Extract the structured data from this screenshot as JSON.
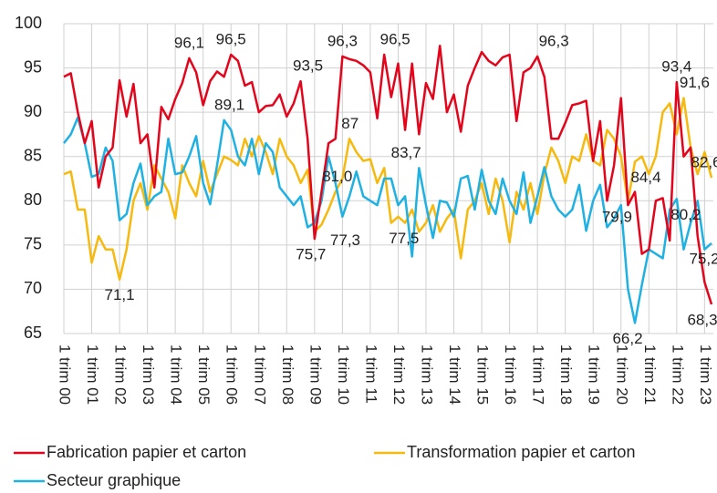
{
  "chart_data": {
    "type": "line",
    "categories": [
      "1 trim 00",
      null,
      null,
      null,
      "1 trim 01",
      null,
      null,
      null,
      "1 trim 02",
      null,
      null,
      null,
      "1 trim 03",
      null,
      null,
      null,
      "1 trim 04",
      null,
      null,
      null,
      "1 trim 05",
      null,
      null,
      null,
      "1 trim 06",
      null,
      null,
      null,
      "1 trim 07",
      null,
      null,
      null,
      "1 trim 08",
      null,
      null,
      null,
      "1 trim 09",
      null,
      null,
      null,
      "1 trim 10",
      null,
      null,
      null,
      "1 trim 11",
      null,
      null,
      null,
      "1 trim 12",
      null,
      null,
      null,
      "1 trim 13",
      null,
      null,
      null,
      "1 trim 14",
      null,
      null,
      null,
      "1 trim 15",
      null,
      null,
      null,
      "1 trim 16",
      null,
      null,
      null,
      "1 trim 17",
      null,
      null,
      null,
      "1 trim 18",
      null,
      null,
      null,
      "1 trim 19",
      null,
      null,
      null,
      "1 trim 20",
      null,
      null,
      null,
      "1 trim 21",
      null,
      null,
      null,
      "1 trim 22",
      null,
      null,
      null,
      "1 trim 23",
      null
    ],
    "series": [
      {
        "name": "Fabrication papier et carton",
        "color": "#e3051b",
        "values": [
          94,
          94.4,
          90,
          86.5,
          89,
          81.5,
          85,
          86,
          93.6,
          89.5,
          93.2,
          86.5,
          87.5,
          81.5,
          90.6,
          89.2,
          91.5,
          93.3,
          96.1,
          94.5,
          90.8,
          93.5,
          94.6,
          94,
          96.5,
          95.8,
          93,
          93.4,
          90,
          90.7,
          90.8,
          92,
          89.5,
          91,
          93.5,
          87,
          75.7,
          81,
          86.5,
          87,
          96.3,
          96,
          95.8,
          95.3,
          94.5,
          89.3,
          96.5,
          91.7,
          95.5,
          88,
          95.5,
          87.5,
          93.3,
          91.5,
          97.5,
          90,
          92,
          87.8,
          93,
          95,
          96.8,
          95.8,
          95.3,
          96.2,
          96.5,
          89,
          94.5,
          95,
          96.3,
          94,
          87,
          87,
          88.8,
          90.8,
          91,
          91.3,
          84.5,
          89,
          80,
          84,
          91.6,
          79.5,
          81,
          74,
          74.5,
          80,
          80.3,
          75.5,
          93.4,
          85,
          86,
          76,
          70.8,
          68.3
        ],
        "value_labels": [
          null,
          null,
          null,
          null,
          null,
          null,
          null,
          null,
          null,
          null,
          null,
          null,
          null,
          null,
          null,
          null,
          null,
          null,
          "96,1",
          null,
          null,
          null,
          null,
          null,
          "96,5",
          null,
          null,
          null,
          null,
          null,
          null,
          null,
          null,
          null,
          "93,5",
          null,
          "75,7",
          null,
          null,
          "87",
          "96,3",
          null,
          null,
          null,
          null,
          null,
          "96,5",
          null,
          null,
          null,
          null,
          null,
          null,
          null,
          null,
          null,
          null,
          null,
          null,
          null,
          null,
          null,
          null,
          null,
          null,
          null,
          null,
          null,
          "96,3",
          null,
          null,
          null,
          null,
          null,
          null,
          null,
          null,
          null,
          null,
          null,
          null,
          null,
          null,
          null,
          null,
          null,
          null,
          null,
          "93,4",
          null,
          null,
          null,
          null,
          "68,3"
        ]
      },
      {
        "name": "Transformation papier et carton",
        "color": "#f6b90d",
        "values": [
          83,
          83.3,
          79,
          79,
          73,
          76,
          74.5,
          74.5,
          71.1,
          74.5,
          80,
          82,
          79,
          84,
          82.5,
          81,
          78,
          84,
          82,
          80.5,
          84.5,
          81,
          83,
          85,
          84.6,
          84,
          87,
          85,
          87.3,
          85.5,
          83,
          87,
          85,
          84,
          82,
          83.5,
          76.5,
          77.3,
          79,
          81,
          82.5,
          87,
          85.5,
          84.5,
          84.7,
          82,
          83.7,
          77.5,
          78.2,
          77.5,
          79,
          76.5,
          77.5,
          79.5,
          76.5,
          78,
          79,
          73.5,
          79,
          80,
          82,
          78.5,
          82.5,
          80,
          75.3,
          81,
          79,
          82,
          78.5,
          83,
          86,
          84.5,
          82,
          85,
          84.5,
          87.5,
          84.5,
          84,
          88,
          87,
          85,
          79.9,
          84.4,
          85,
          83,
          85,
          90,
          91,
          87.5,
          91.6,
          86,
          83,
          85.5,
          82.6
        ],
        "value_labels": [
          null,
          null,
          null,
          null,
          null,
          null,
          null,
          null,
          "71,1",
          null,
          null,
          null,
          null,
          null,
          null,
          null,
          null,
          null,
          null,
          null,
          null,
          null,
          null,
          null,
          null,
          null,
          null,
          null,
          null,
          null,
          null,
          null,
          null,
          null,
          null,
          null,
          null,
          "77,3",
          null,
          "81,0",
          null,
          null,
          null,
          null,
          null,
          null,
          "83,7",
          "77,5",
          null,
          null,
          null,
          null,
          null,
          null,
          null,
          null,
          null,
          null,
          null,
          null,
          null,
          null,
          null,
          null,
          null,
          null,
          null,
          null,
          null,
          null,
          null,
          null,
          null,
          null,
          null,
          null,
          null,
          null,
          null,
          null,
          null,
          "79,9",
          "84,4",
          null,
          null,
          null,
          null,
          null,
          null,
          "91,6",
          null,
          null,
          null,
          "82,6"
        ]
      },
      {
        "name": "Secteur graphique",
        "color": "#1fb1e2",
        "values": [
          86.5,
          87.5,
          89.4,
          86.5,
          82.7,
          83,
          86,
          84.5,
          77.8,
          78.5,
          82,
          84.2,
          79.5,
          80.5,
          81,
          87,
          83,
          83.2,
          85,
          87.3,
          82,
          79.6,
          84,
          89.1,
          88,
          85,
          84,
          87,
          83,
          86.5,
          85.5,
          81.5,
          80.5,
          79.5,
          80.5,
          77,
          77.5,
          80,
          85,
          82,
          78.2,
          80.5,
          83.3,
          80.5,
          80,
          79.5,
          82.5,
          82.5,
          79.5,
          80.5,
          73.7,
          83.7,
          79.5,
          75.8,
          80,
          79.8,
          78.2,
          82.5,
          82.8,
          79,
          83.5,
          80,
          78.5,
          82.5,
          80,
          78.5,
          83.2,
          77.5,
          80.5,
          83.8,
          80.5,
          79,
          78.2,
          79,
          81.8,
          76.6,
          80,
          81.8,
          77,
          78,
          79.5,
          70,
          66.2,
          70.5,
          74.5,
          74,
          73.5,
          79,
          80.2,
          74.5,
          77.5,
          80,
          74.5,
          75.2
        ],
        "value_labels": [
          null,
          null,
          null,
          null,
          null,
          null,
          null,
          null,
          null,
          null,
          null,
          null,
          null,
          null,
          null,
          null,
          null,
          null,
          null,
          null,
          null,
          null,
          null,
          "89,1",
          null,
          null,
          null,
          null,
          null,
          null,
          null,
          null,
          null,
          null,
          null,
          null,
          null,
          null,
          null,
          null,
          null,
          null,
          null,
          null,
          null,
          null,
          null,
          null,
          null,
          null,
          null,
          null,
          null,
          null,
          null,
          null,
          null,
          null,
          null,
          null,
          null,
          null,
          null,
          null,
          null,
          null,
          null,
          null,
          null,
          null,
          null,
          null,
          null,
          null,
          null,
          null,
          null,
          null,
          null,
          null,
          null,
          null,
          "66,2",
          null,
          null,
          null,
          null,
          null,
          "80,2",
          null,
          null,
          null,
          null,
          "75,2"
        ]
      }
    ],
    "ylim": [
      65,
      100
    ],
    "yticks": [
      65,
      70,
      75,
      80,
      85,
      90,
      95,
      100
    ],
    "grid": true
  }
}
